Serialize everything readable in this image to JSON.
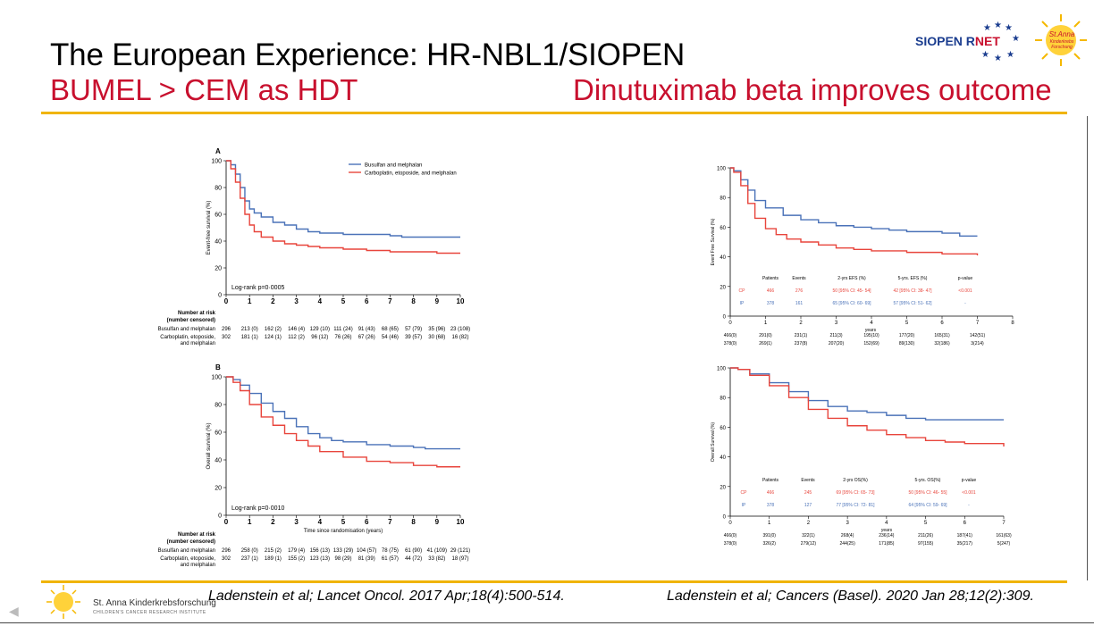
{
  "slide": {
    "title": "The European Experience:  HR-NBL1/SIOPEN",
    "subtitle_left": "BUMEL > CEM as HDT",
    "subtitle_right": "Dinutuximab beta improves outcome",
    "logo_siopen_a": "SIOPEN R",
    "logo_siopen_b": "NET",
    "logo_stanna": "St.Anna",
    "logo_stanna_sub": "Kinderkrebs Forschung",
    "ref_left": "Ladenstein et al; Lancet Oncol. 2017 Apr;18(4):500-514.",
    "ref_right": "Ladenstein et al; Cancers (Basel). 2020 Jan 28;12(2):309.",
    "footer_org": "St. Anna Kinderkrebsforschung",
    "footer_org_sub": "CHILDREN'S CANCER RESEARCH INSTITUTE",
    "colors": {
      "red": "#c8102e",
      "gold": "#f0b400",
      "blue_series": "#4a72b8",
      "red_series": "#e8453c"
    }
  },
  "chart_data": [
    {
      "type": "line",
      "panel": "A",
      "ylabel": "Event-free survival (%)",
      "xlim": [
        0,
        10
      ],
      "ylim": [
        0,
        100
      ],
      "xticks": [
        "0",
        "1",
        "2",
        "3",
        "4",
        "5",
        "6",
        "7",
        "8",
        "9",
        "10"
      ],
      "yticks": [
        "0",
        "20",
        "40",
        "60",
        "80",
        "100"
      ],
      "legend": [
        "Busulfan and melphalan",
        "Carboplatin, etoposide, and melphalan"
      ],
      "annotation": "Log-rank p=0·0005",
      "series": [
        {
          "name": "Busulfan and melphalan",
          "color": "#4a72b8",
          "x": [
            0,
            0.2,
            0.4,
            0.6,
            0.8,
            1,
            1.2,
            1.5,
            2,
            2.5,
            3,
            3.5,
            4,
            5,
            6,
            7,
            7.5,
            8,
            9,
            10
          ],
          "y": [
            100,
            97,
            90,
            80,
            70,
            64,
            61,
            58,
            54,
            52,
            49,
            47,
            46,
            45,
            45,
            44,
            43,
            43,
            43,
            43
          ]
        },
        {
          "name": "Carboplatin, etoposide, and melphalan",
          "color": "#e8453c",
          "x": [
            0,
            0.2,
            0.4,
            0.6,
            0.8,
            1,
            1.2,
            1.5,
            2,
            2.5,
            3,
            3.5,
            4,
            5,
            6,
            7,
            8,
            9,
            10
          ],
          "y": [
            100,
            94,
            84,
            72,
            60,
            52,
            47,
            43,
            40,
            38,
            37,
            36,
            35,
            34,
            33,
            32,
            32,
            31,
            31
          ]
        }
      ],
      "risk_table": {
        "header": [
          "Number at risk",
          "(number censored)"
        ],
        "rows": [
          {
            "label": [
              "Busulfan and melphalan"
            ],
            "cells": [
              "296",
              "213 (0)",
              "162 (2)",
              "146 (4)",
              "129 (10)",
              "111 (24)",
              "91 (43)",
              "68 (65)",
              "57 (79)",
              "35 (96)",
              "23 (108)"
            ]
          },
          {
            "label": [
              "Carboplatin, etoposide,",
              "and melphalan"
            ],
            "cells": [
              "302",
              "181 (1)",
              "124 (1)",
              "112 (2)",
              "96 (12)",
              "76 (26)",
              "67 (26)",
              "54 (46)",
              "39 (57)",
              "30 (68)",
              "16 (82)"
            ]
          }
        ]
      }
    },
    {
      "type": "line",
      "panel": "B",
      "ylabel": "Overall survival (%)",
      "xlabel": "Time since randomisation (years)",
      "xlim": [
        0,
        10
      ],
      "ylim": [
        0,
        100
      ],
      "xticks": [
        "0",
        "1",
        "2",
        "3",
        "4",
        "5",
        "6",
        "7",
        "8",
        "9",
        "10"
      ],
      "yticks": [
        "0",
        "20",
        "40",
        "60",
        "80",
        "100"
      ],
      "annotation": "Log-rank p=0·0010",
      "series": [
        {
          "name": "Busulfan and melphalan",
          "color": "#4a72b8",
          "x": [
            0,
            0.3,
            0.6,
            1,
            1.5,
            2,
            2.5,
            3,
            3.5,
            4,
            4.5,
            5,
            6,
            7,
            8,
            8.5,
            9,
            10
          ],
          "y": [
            100,
            98,
            94,
            88,
            81,
            75,
            70,
            64,
            59,
            56,
            54,
            53,
            51,
            50,
            49,
            48,
            48,
            48
          ]
        },
        {
          "name": "Carboplatin, etoposide, and melphalan",
          "color": "#e8453c",
          "x": [
            0,
            0.3,
            0.6,
            1,
            1.5,
            2,
            2.5,
            3,
            3.5,
            4,
            5,
            6,
            7,
            8,
            9,
            10
          ],
          "y": [
            100,
            96,
            90,
            80,
            71,
            65,
            59,
            54,
            50,
            46,
            42,
            39,
            38,
            36,
            35,
            35
          ]
        }
      ],
      "risk_table": {
        "header": [
          "Number at risk",
          "(number censored)"
        ],
        "rows": [
          {
            "label": [
              "Busulfan and melphalan"
            ],
            "cells": [
              "296",
              "258 (0)",
              "215 (2)",
              "179 (4)",
              "156 (13)",
              "133 (29)",
              "104 (57)",
              "78 (75)",
              "61 (90)",
              "41 (109)",
              "29 (121)"
            ]
          },
          {
            "label": [
              "Carboplatin, etoposide,",
              "and melphalan"
            ],
            "cells": [
              "302",
              "237 (1)",
              "189 (1)",
              "155 (2)",
              "123 (13)",
              "98 (29)",
              "81 (39)",
              "61 (57)",
              "44 (72)",
              "33 (82)",
              "18 (97)"
            ]
          }
        ]
      }
    },
    {
      "type": "line",
      "panel": "EFS",
      "ylabel": "Event Free Survival (%)",
      "xlabel": "years",
      "xlim": [
        0,
        8
      ],
      "ylim": [
        0,
        100
      ],
      "xticks": [
        "0",
        "1",
        "2",
        "3",
        "4",
        "5",
        "6",
        "7",
        "8"
      ],
      "yticks": [
        "0",
        "20",
        "40",
        "60",
        "80",
        "100"
      ],
      "series": [
        {
          "name": "IP",
          "color": "#4a72b8",
          "x": [
            0,
            0.1,
            0.3,
            0.5,
            0.7,
            1,
            1.5,
            2,
            2.5,
            3,
            3.5,
            4,
            4.5,
            5,
            5.5,
            6,
            6.4,
            6.5,
            7
          ],
          "y": [
            100,
            98,
            92,
            85,
            78,
            73,
            68,
            65,
            63,
            61,
            60,
            59,
            58,
            57,
            57,
            56,
            56,
            54,
            54
          ]
        },
        {
          "name": "CP",
          "color": "#e8453c",
          "x": [
            0,
            0.1,
            0.3,
            0.5,
            0.7,
            1,
            1.3,
            1.6,
            2,
            2.5,
            3,
            3.5,
            4,
            5,
            6,
            7
          ],
          "y": [
            100,
            97,
            88,
            76,
            66,
            59,
            55,
            52,
            50,
            48,
            46,
            45,
            44,
            43,
            42,
            41
          ]
        }
      ],
      "stats_table": {
        "header": [
          "Patients",
          "Events",
          "2-yrs EFS (%)",
          "5-yrs. EFS (%)",
          "p-value"
        ],
        "rows": [
          {
            "arm": "CP",
            "cells": [
              "466",
              "276",
              "50 [95% CI: 45- 54]",
              "42 [95% CI: 38- 47]",
              "<0.001"
            ]
          },
          {
            "arm": "IP",
            "cells": [
              "378",
              "161",
              "65 [95% CI: 60- 69]",
              "57 [95% CI: 51- 62]",
              "-"
            ]
          }
        ]
      },
      "risk_table": {
        "rows": [
          {
            "cells": [
              "466(0)",
              "291(0)",
              "231(1)",
              "211(3)",
              "195(10)",
              "177(20)",
              "165(31)",
              "142(51)"
            ]
          },
          {
            "cells": [
              "378(0)",
              "269(1)",
              "237(8)",
              "207(20)",
              "152(69)",
              "89(130)",
              "32(186)",
              "3(214)"
            ]
          }
        ]
      }
    },
    {
      "type": "line",
      "panel": "OS",
      "ylabel": "Overall Survival (%)",
      "xlabel": "years",
      "xlim": [
        0,
        7
      ],
      "ylim": [
        0,
        100
      ],
      "xticks": [
        "0",
        "1",
        "2",
        "3",
        "4",
        "5",
        "6",
        "7"
      ],
      "yticks": [
        "0",
        "20",
        "40",
        "60",
        "80",
        "100"
      ],
      "series": [
        {
          "name": "IP",
          "color": "#4a72b8",
          "x": [
            0,
            0.2,
            0.5,
            1,
            1.5,
            2,
            2.5,
            3,
            3.5,
            4,
            4.5,
            5,
            5.5,
            6,
            7
          ],
          "y": [
            100,
            99,
            96,
            90,
            84,
            78,
            74,
            71,
            70,
            68,
            66,
            65,
            65,
            65,
            65
          ]
        },
        {
          "name": "CP",
          "color": "#e8453c",
          "x": [
            0,
            0.2,
            0.5,
            1,
            1.5,
            2,
            2.5,
            3,
            3.5,
            4,
            4.5,
            5,
            5.5,
            6,
            7
          ],
          "y": [
            100,
            99,
            95,
            88,
            80,
            72,
            66,
            61,
            58,
            55,
            53,
            51,
            50,
            49,
            47
          ]
        }
      ],
      "stats_table": {
        "header": [
          "Patients",
          "Events",
          "2-yrs OS(%)",
          "5-yrs. OS(%)",
          "p-value"
        ],
        "rows": [
          {
            "arm": "CP",
            "cells": [
              "466",
              "245",
              "69 [95% CI: 65- 73]",
              "50 [95% CI: 46- 55]",
              "<0.001"
            ]
          },
          {
            "arm": "IP",
            "cells": [
              "378",
              "127",
              "77 [95% CI: 72- 81]",
              "64 [95% CI: 59- 69]",
              "-"
            ]
          }
        ]
      },
      "risk_table": {
        "rows": [
          {
            "cells": [
              "466(0)",
              "391(0)",
              "322(1)",
              "268(4)",
              "236(14)",
              "211(26)",
              "187(41)",
              "161(63)"
            ]
          },
          {
            "cells": [
              "378(0)",
              "326(2)",
              "279(12)",
              "244(25)",
              "171(85)",
              "97(155)",
              "35(217)",
              "5(247)"
            ]
          }
        ]
      }
    }
  ]
}
